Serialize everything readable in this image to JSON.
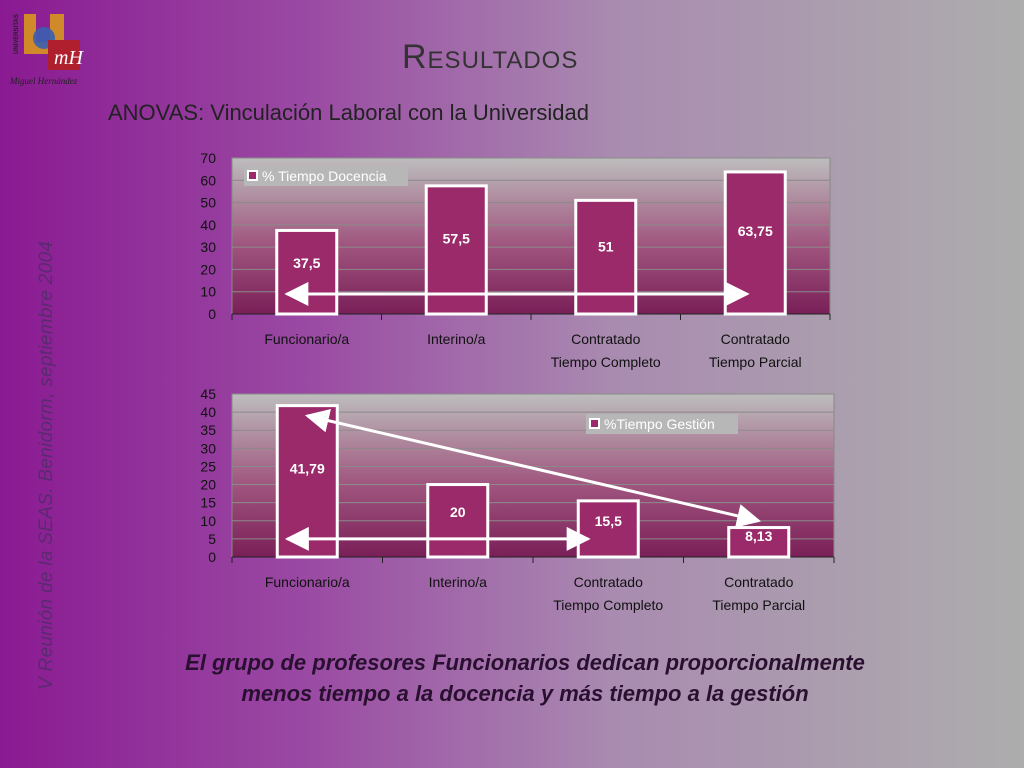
{
  "header": {
    "title": "Resultados",
    "subtitle": "ANOVAS: Vinculación Laboral con la Universidad"
  },
  "logo": {
    "vertical_text": "UNIVERSITAS",
    "caption": "Miguel Hernández",
    "mark": "mH"
  },
  "side_text": "V Reunión de la SEAS. Benidorm, septiembre 2004",
  "footer": {
    "text": "El grupo de profesores Funcionarios dedican proporcionalmente menos tiempo a la docencia y más tiempo a la gestión"
  },
  "colors": {
    "bar": "#9b2a6a",
    "bar_border": "#ffffff",
    "plot_bg_top": "#b9b9b9",
    "plot_bg_bottom": "#7a1f58",
    "text": "#222222"
  },
  "chart_data": [
    {
      "type": "bar",
      "categories": [
        "Funcionario/a",
        "Interino/a",
        "Contratado Tiempo Completo",
        "Contratado Tiempo Parcial"
      ],
      "series": [
        {
          "name": "% Tiempo Docencia",
          "values": [
            37.5,
            57.5,
            51,
            63.75
          ]
        }
      ],
      "data_labels": [
        "37,5",
        "57,5",
        "51",
        "63,75"
      ],
      "ylim": [
        0,
        70
      ],
      "yticks": [
        0,
        10,
        20,
        30,
        40,
        50,
        60,
        70
      ],
      "grid": true,
      "legend_position": "top-left",
      "annotations": [
        {
          "type": "double-arrow",
          "from": "Funcionario/a",
          "to": "Contratado Tiempo Parcial"
        }
      ]
    },
    {
      "type": "bar",
      "categories": [
        "Funcionario/a",
        "Interino/a",
        "Contratado Tiempo Completo",
        "Contratado Tiempo Parcial"
      ],
      "series": [
        {
          "name": "%Tiempo Gestión",
          "values": [
            41.79,
            20,
            15.5,
            8.13
          ]
        }
      ],
      "data_labels": [
        "41,79",
        "20",
        "15,5",
        "8,13"
      ],
      "ylim": [
        0,
        45
      ],
      "yticks": [
        0,
        5,
        10,
        15,
        20,
        25,
        30,
        35,
        40,
        45
      ],
      "grid": true,
      "legend_position": "top-right",
      "annotations": [
        {
          "type": "double-arrow",
          "from": "Funcionario/a",
          "to": "Contratado Tiempo Parcial"
        },
        {
          "type": "double-arrow",
          "from": "Funcionario/a",
          "to": "Contratado Tiempo Completo"
        }
      ]
    }
  ]
}
